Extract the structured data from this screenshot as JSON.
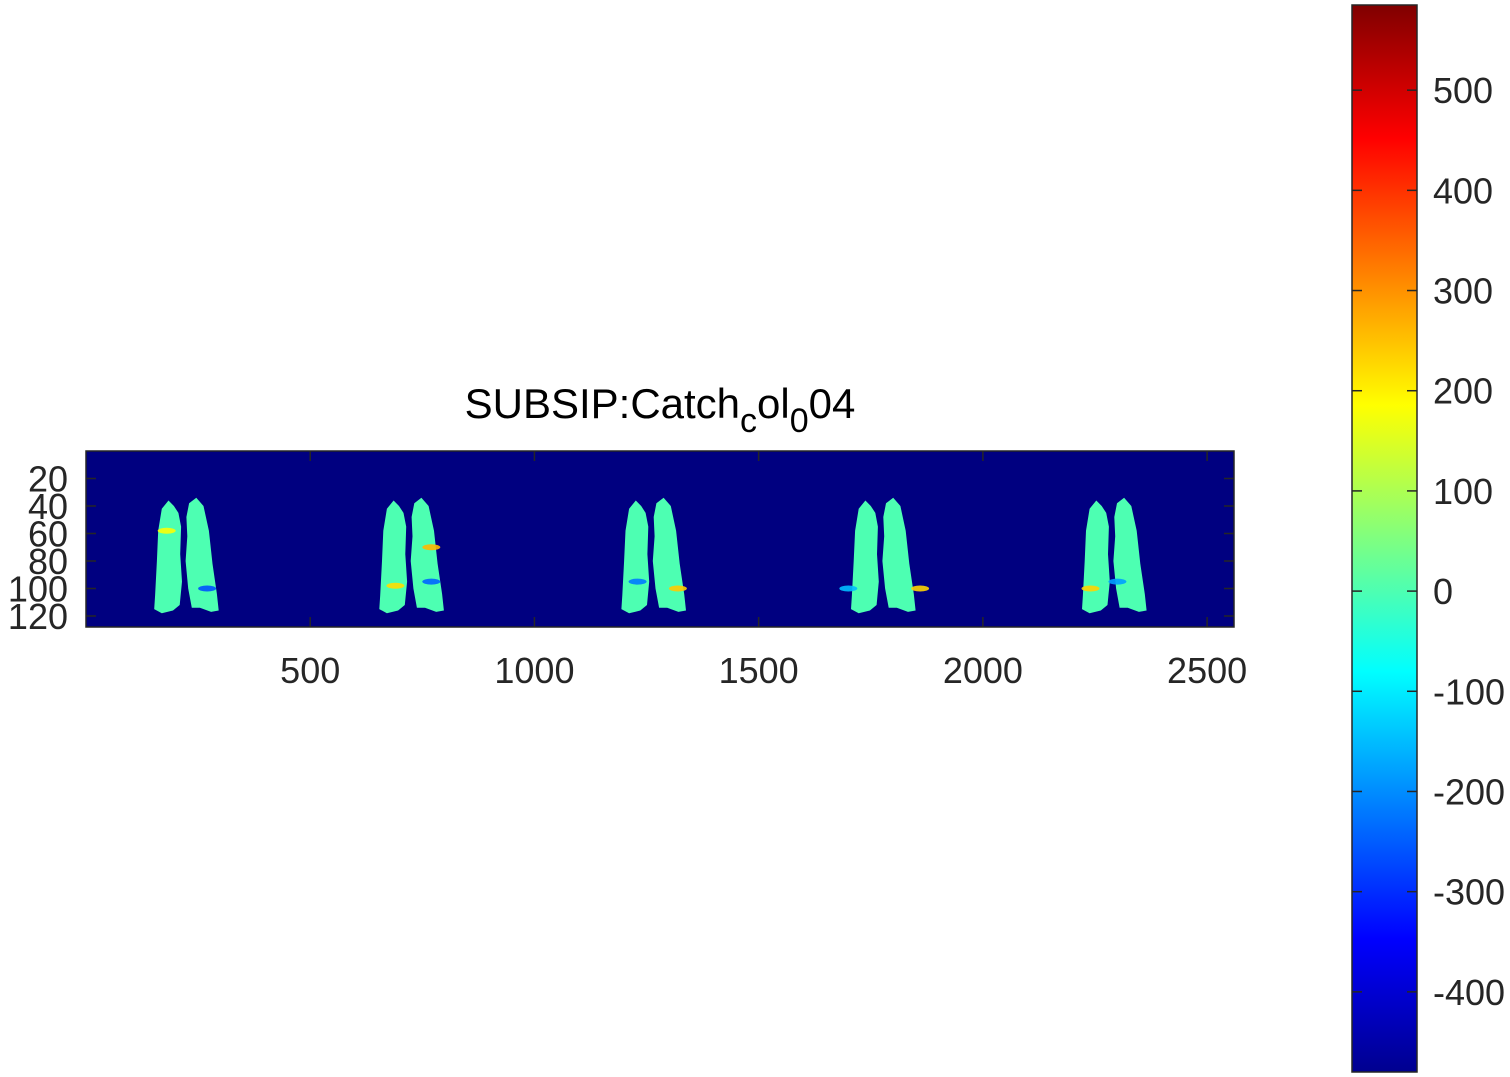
{
  "chart_data": {
    "type": "heatmap",
    "title": {
      "main": "SUBSIP:Catch",
      "sub1": "c",
      "mid": "ol",
      "sub2": "0",
      "tail": "04"
    },
    "xlabel": "",
    "ylabel": "",
    "xlim": [
      0,
      2560
    ],
    "ylim": [
      0,
      128
    ],
    "x_ticks": [
      500,
      1000,
      1500,
      2000,
      2500
    ],
    "y_ticks": [
      20,
      40,
      60,
      80,
      100,
      120
    ],
    "y_direction": "reverse",
    "colormap": "jet",
    "background_value": -480,
    "tissue_value": 0,
    "panels": [
      {
        "x_center": 224,
        "highlights": [
          {
            "x": 180,
            "y": 58,
            "v": 180
          },
          {
            "x": 270,
            "y": 100,
            "v": -260
          }
        ]
      },
      {
        "x_center": 726,
        "highlights": [
          {
            "x": 690,
            "y": 98,
            "v": 220
          },
          {
            "x": 770,
            "y": 70,
            "v": 260
          },
          {
            "x": 770,
            "y": 95,
            "v": -240
          }
        ]
      },
      {
        "x_center": 1266,
        "highlights": [
          {
            "x": 1230,
            "y": 95,
            "v": -220
          },
          {
            "x": 1320,
            "y": 100,
            "v": 240
          }
        ]
      },
      {
        "x_center": 1778,
        "highlights": [
          {
            "x": 1700,
            "y": 100,
            "v": -150
          },
          {
            "x": 1860,
            "y": 100,
            "v": 230
          }
        ]
      },
      {
        "x_center": 2293,
        "highlights": [
          {
            "x": 2240,
            "y": 100,
            "v": 230
          },
          {
            "x": 2300,
            "y": 95,
            "v": -180
          }
        ]
      }
    ],
    "colorbar": {
      "range": [
        -480,
        585
      ],
      "ticks": [
        -400,
        -300,
        -200,
        -100,
        0,
        100,
        200,
        300,
        400,
        500
      ],
      "tick_labels": [
        "-400",
        "-300",
        "-200",
        "-100",
        "0",
        "100",
        "200",
        "300",
        "400",
        "500"
      ]
    },
    "colors": {
      "axis": "#262626",
      "background_field": "#00008f",
      "tissue": "#5ff0a8"
    }
  }
}
